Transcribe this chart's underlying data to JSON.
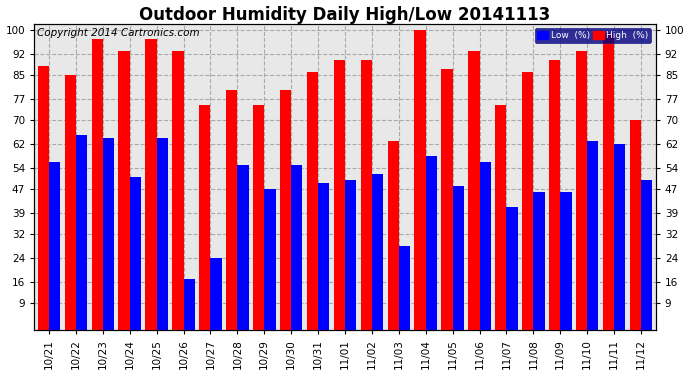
{
  "title": "Outdoor Humidity Daily High/Low 20141113",
  "copyright": "Copyright 2014 Cartronics.com",
  "legend_low": "Low  (%)",
  "legend_high": "High  (%)",
  "dates": [
    "10/21",
    "10/22",
    "10/23",
    "10/24",
    "10/25",
    "10/26",
    "10/27",
    "10/28",
    "10/29",
    "10/30",
    "10/31",
    "11/01",
    "11/02",
    "11/03",
    "11/04",
    "11/05",
    "11/06",
    "11/07",
    "11/08",
    "11/09",
    "11/10",
    "11/11",
    "11/12"
  ],
  "high_values": [
    88,
    85,
    97,
    93,
    97,
    93,
    75,
    80,
    75,
    80,
    86,
    90,
    90,
    63,
    100,
    87,
    93,
    75,
    86,
    90,
    93,
    99,
    70
  ],
  "low_values": [
    56,
    65,
    64,
    51,
    64,
    17,
    24,
    55,
    47,
    55,
    49,
    50,
    52,
    28,
    58,
    48,
    56,
    41,
    46,
    46,
    63,
    62,
    50
  ],
  "bar_color_high": "#ff0000",
  "bar_color_low": "#0000ff",
  "background_color": "#ffffff",
  "plot_bg_color": "#e8e8e8",
  "grid_color": "#aaaaaa",
  "yticks": [
    9,
    16,
    24,
    32,
    39,
    47,
    54,
    62,
    70,
    77,
    85,
    92,
    100
  ],
  "ymin": 9,
  "ymax": 100,
  "title_fontsize": 12,
  "tick_fontsize": 7.5,
  "copyright_fontsize": 7.5
}
